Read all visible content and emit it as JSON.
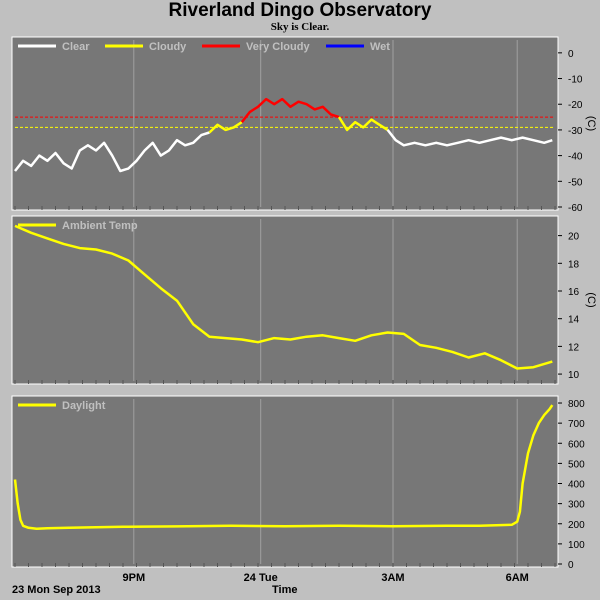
{
  "title": "Riverland Dingo Observatory",
  "subtitle": "Sky is Clear.",
  "footer": {
    "date": "23 Mon Sep 2013",
    "xlabel": "Time"
  },
  "colors": {
    "plot_bg": "#777777",
    "frame": "#c0c0c0",
    "grid": "#a0a0a0",
    "yellow": "#ffff00",
    "red": "#ff0000",
    "blue": "#0000ff",
    "white": "#ffffff",
    "legend_text": "#c0c0c0"
  },
  "chart_data": [
    {
      "type": "line",
      "name": "sky",
      "legend": [
        {
          "label": "Clear",
          "color": "#ffffff"
        },
        {
          "label": "Cloudy",
          "color": "#ffff00"
        },
        {
          "label": "Very Cloudy",
          "color": "#ff0000"
        },
        {
          "label": "Wet",
          "color": "#0000ff"
        }
      ],
      "ylabel": "(C)",
      "ylim": [
        -60,
        5
      ],
      "yticks": [
        0,
        -10,
        -20,
        -30,
        -40,
        -50,
        -60
      ],
      "thresholds": [
        {
          "value": -25,
          "color": "#ff0000"
        },
        {
          "value": -29,
          "color": "#ffff00"
        }
      ],
      "segments": [
        {
          "color": "#ffffff",
          "x": [
            0.0,
            0.15,
            0.3,
            0.45,
            0.6,
            0.75,
            0.9,
            1.05,
            1.2,
            1.35,
            1.5,
            1.65,
            1.8,
            1.95,
            2.1,
            2.25,
            2.4,
            2.55,
            2.7,
            2.85,
            3.0,
            3.15,
            3.3,
            3.45,
            3.6
          ],
          "y": [
            -46,
            -42,
            -44,
            -40,
            -42,
            -39,
            -43,
            -45,
            -38,
            -36,
            -38,
            -35,
            -40,
            -46,
            -45,
            -42,
            -38,
            -35,
            -40,
            -38,
            -34,
            -36,
            -35,
            -32,
            -31
          ]
        },
        {
          "color": "#ffff00",
          "x": [
            3.6,
            3.75,
            3.9,
            4.05,
            4.2
          ],
          "y": [
            -31,
            -28,
            -30,
            -29,
            -27
          ]
        },
        {
          "color": "#ff0000",
          "x": [
            4.2,
            4.35,
            4.5,
            4.65,
            4.8,
            4.95,
            5.1,
            5.25,
            5.4,
            5.55,
            5.7,
            5.85,
            6.0
          ],
          "y": [
            -27,
            -23,
            -21,
            -18,
            -20,
            -18,
            -21,
            -19,
            -20,
            -22,
            -21,
            -24,
            -25
          ]
        },
        {
          "color": "#ffff00",
          "x": [
            6.0,
            6.15,
            6.3,
            6.45,
            6.6,
            6.75,
            6.9
          ],
          "y": [
            -25,
            -30,
            -27,
            -29,
            -26,
            -28,
            -30
          ]
        },
        {
          "color": "#ffffff",
          "x": [
            6.9,
            7.05,
            7.2,
            7.4,
            7.6,
            7.8,
            8.0,
            8.2,
            8.4,
            8.6,
            8.8,
            9.0,
            9.2,
            9.4,
            9.6,
            9.8,
            9.95
          ],
          "y": [
            -30,
            -34,
            -36,
            -35,
            -36,
            -35,
            -36,
            -35,
            -34,
            -35,
            -34,
            -33,
            -34,
            -33,
            -34,
            -35,
            -34
          ]
        }
      ]
    },
    {
      "type": "line",
      "name": "ambient",
      "legend": [
        {
          "label": "Ambient Temp",
          "color": "#ffff00"
        }
      ],
      "ylabel": "(C)",
      "ylim": [
        9.5,
        21.2
      ],
      "yticks": [
        20,
        18,
        16,
        14,
        12,
        10
      ],
      "segments": [
        {
          "color": "#ffff00",
          "x": [
            0.0,
            0.3,
            0.6,
            0.9,
            1.2,
            1.5,
            1.8,
            2.1,
            2.4,
            2.7,
            3.0,
            3.3,
            3.6,
            3.9,
            4.2,
            4.5,
            4.8,
            5.1,
            5.4,
            5.7,
            6.0,
            6.3,
            6.6,
            6.9,
            7.2,
            7.5,
            7.8,
            8.1,
            8.4,
            8.7,
            9.0,
            9.3,
            9.6,
            9.95
          ],
          "y": [
            20.7,
            20.2,
            19.8,
            19.4,
            19.1,
            19.0,
            18.7,
            18.2,
            17.2,
            16.2,
            15.3,
            13.6,
            12.7,
            12.6,
            12.5,
            12.3,
            12.6,
            12.5,
            12.7,
            12.8,
            12.6,
            12.4,
            12.8,
            13.0,
            12.9,
            12.1,
            11.9,
            11.6,
            11.2,
            11.5,
            11.0,
            10.4,
            10.5,
            10.9
          ]
        }
      ]
    },
    {
      "type": "line",
      "name": "daylight",
      "legend": [
        {
          "label": "Daylight",
          "color": "#ffff00"
        }
      ],
      "ylabel": "",
      "ylim": [
        0,
        820
      ],
      "yticks": [
        800,
        700,
        600,
        500,
        400,
        300,
        200,
        100,
        0
      ],
      "segments": [
        {
          "color": "#ffff00",
          "x": [
            0.0,
            0.05,
            0.1,
            0.15,
            0.25,
            0.4,
            0.6,
            1.0,
            2.0,
            3.0,
            4.0,
            5.0,
            6.0,
            7.0,
            8.0,
            8.6,
            9.2,
            9.3,
            9.35,
            9.4,
            9.5,
            9.6,
            9.7,
            9.8,
            9.9,
            9.95
          ],
          "y": [
            420,
            300,
            220,
            190,
            180,
            175,
            178,
            180,
            185,
            187,
            190,
            188,
            190,
            188,
            190,
            190,
            195,
            210,
            260,
            400,
            550,
            640,
            700,
            740,
            770,
            790
          ]
        }
      ]
    }
  ],
  "x_axis": {
    "range": [
      0,
      10
    ],
    "ticks": [
      {
        "x": 2.2,
        "label": "9PM"
      },
      {
        "x": 4.55,
        "label": "24 Tue"
      },
      {
        "x": 7.0,
        "label": "3AM"
      },
      {
        "x": 9.3,
        "label": "6AM"
      }
    ],
    "grid": [
      2.2,
      4.55,
      7.0,
      9.3
    ]
  }
}
